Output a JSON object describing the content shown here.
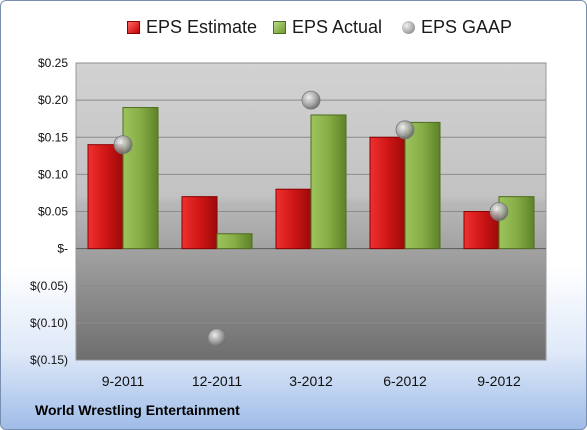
{
  "chart_data": {
    "type": "bar",
    "categories": [
      "9-2011",
      "12-2011",
      "3-2012",
      "6-2012",
      "9-2012"
    ],
    "series": [
      {
        "name": "EPS Estimate",
        "type": "bar",
        "color": "#cc1a1a",
        "values": [
          0.14,
          0.07,
          0.08,
          0.15,
          0.05
        ]
      },
      {
        "name": "EPS Actual",
        "type": "bar",
        "color": "#7ea83a",
        "values": [
          0.19,
          0.02,
          0.18,
          0.17,
          0.07
        ]
      },
      {
        "name": "EPS GAAP",
        "type": "scatter",
        "color": "#a0a0a0",
        "values": [
          0.14,
          -0.12,
          0.2,
          0.16,
          0.05
        ]
      }
    ],
    "ylim": [
      -0.15,
      0.25
    ],
    "yticks": [
      0.25,
      0.2,
      0.15,
      0.1,
      0.05,
      0,
      -0.05,
      -0.1,
      -0.15
    ],
    "ytick_labels": [
      "$0.25",
      "$0.20",
      "$0.15",
      "$0.10",
      "$0.05",
      "$-",
      "$(0.05)",
      "$(0.10)",
      "$(0.15)"
    ],
    "grid": true,
    "legend_position": "top"
  },
  "legend": {
    "estimate_label": "EPS Estimate",
    "actual_label": "EPS Actual",
    "gaap_label": "EPS GAAP"
  },
  "company_name": "World Wrestling Entertainment"
}
